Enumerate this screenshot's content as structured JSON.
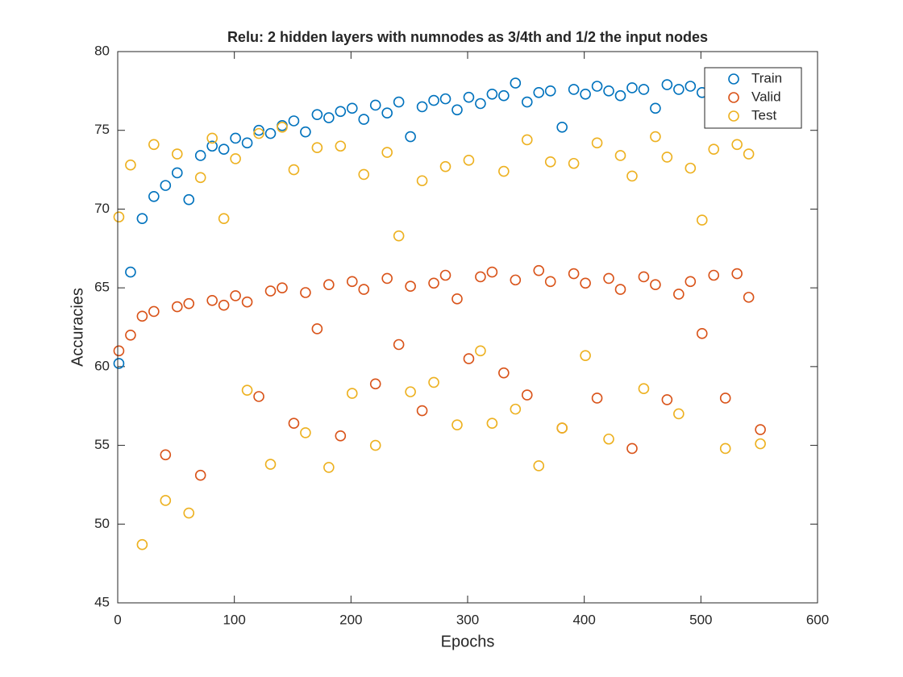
{
  "chart_data": {
    "type": "scatter",
    "title": "Relu: 2 hidden layers with numnodes as 3/4th and 1/2 the input nodes",
    "x_label": "Epochs",
    "y_label": "Accuracies",
    "x": [
      1,
      11,
      21,
      31,
      41,
      51,
      61,
      71,
      81,
      91,
      101,
      111,
      121,
      131,
      141,
      151,
      161,
      171,
      181,
      191,
      201,
      211,
      221,
      231,
      241,
      251,
      261,
      271,
      281,
      291,
      301,
      311,
      321,
      331,
      341,
      351,
      361,
      371,
      381,
      391,
      401,
      411,
      421,
      431,
      441,
      451,
      461,
      471,
      481,
      491,
      501,
      511,
      521,
      531,
      541,
      551
    ],
    "series": [
      {
        "name": "Train",
        "color": "#0072bd",
        "values": [
          60.2,
          66.0,
          69.4,
          70.8,
          71.5,
          72.3,
          70.6,
          73.4,
          74.0,
          73.8,
          74.5,
          74.2,
          75.0,
          74.8,
          75.3,
          75.6,
          74.9,
          76.0,
          75.8,
          76.2,
          76.4,
          75.7,
          76.6,
          76.1,
          76.8,
          74.6,
          76.5,
          76.9,
          77.0,
          76.3,
          77.1,
          76.7,
          77.3,
          77.2,
          78.0,
          76.8,
          77.4,
          77.5,
          75.2,
          77.6,
          77.3,
          77.8,
          77.5,
          77.2,
          77.7,
          77.6,
          76.4,
          77.9,
          77.6,
          77.8,
          77.4,
          78.0,
          77.7,
          78.1,
          77.6,
          77.9
        ]
      },
      {
        "name": "Valid",
        "color": "#d95319",
        "values": [
          61.0,
          62.0,
          63.2,
          63.5,
          54.4,
          63.8,
          64.0,
          53.1,
          64.2,
          63.9,
          64.5,
          64.1,
          58.1,
          64.8,
          65.0,
          56.4,
          64.7,
          62.4,
          65.2,
          55.6,
          65.4,
          64.9,
          58.9,
          65.6,
          61.4,
          65.1,
          57.2,
          65.3,
          65.8,
          64.3,
          60.5,
          65.7,
          66.0,
          59.6,
          65.5,
          58.2,
          66.1,
          65.4,
          56.1,
          65.9,
          65.3,
          58.0,
          65.6,
          64.9,
          54.8,
          65.7,
          65.2,
          57.9,
          64.6,
          65.4,
          62.1,
          65.8,
          58.0,
          65.9,
          64.4,
          56.0
        ]
      },
      {
        "name": "Test",
        "color": "#edb120",
        "values": [
          69.5,
          72.8,
          48.7,
          74.1,
          51.5,
          73.5,
          50.7,
          72.0,
          74.5,
          69.4,
          73.2,
          58.5,
          74.8,
          53.8,
          75.2,
          72.5,
          55.8,
          73.9,
          53.6,
          74.0,
          58.3,
          72.2,
          55.0,
          73.6,
          68.3,
          58.4,
          71.8,
          59.0,
          72.7,
          56.3,
          73.1,
          61.0,
          56.4,
          72.4,
          57.3,
          74.4,
          53.7,
          73.0,
          56.1,
          72.9,
          60.7,
          74.2,
          55.4,
          73.4,
          72.1,
          58.6,
          74.6,
          73.3,
          57.0,
          72.6,
          69.3,
          73.8,
          54.8,
          74.1,
          73.5,
          55.1
        ]
      }
    ],
    "xlim": [
      0,
      600
    ],
    "xticks": [
      0,
      100,
      200,
      300,
      400,
      500,
      600
    ],
    "ylim": [
      45,
      80
    ],
    "yticks": [
      45,
      50,
      55,
      60,
      65,
      70,
      75,
      80
    ],
    "legend": "northeast",
    "grid": false
  }
}
